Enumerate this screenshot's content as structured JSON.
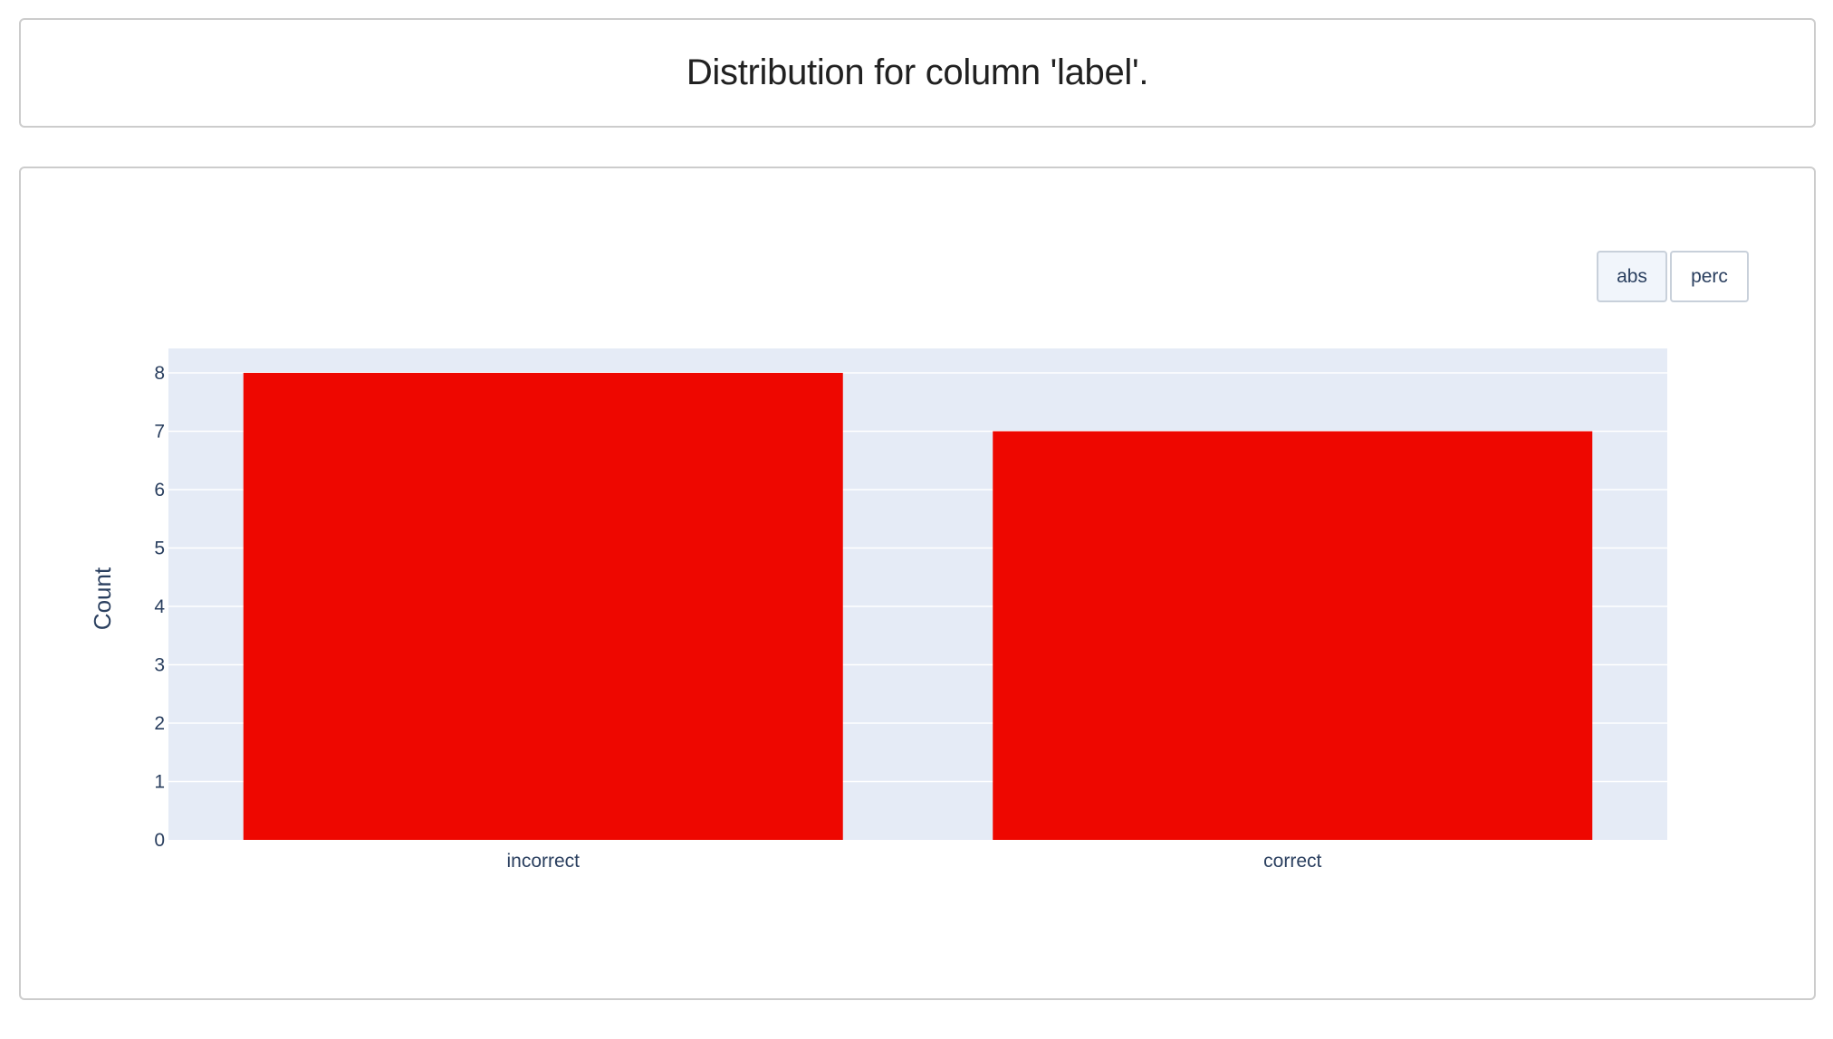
{
  "header": {
    "title": "Distribution for column 'label'."
  },
  "controls": {
    "buttons": [
      {
        "label": "abs",
        "active": true
      },
      {
        "label": "perc",
        "active": false
      }
    ]
  },
  "colors": {
    "bar": "#ee0700",
    "plot_background": "#e5ebf6",
    "grid": "#ffffff",
    "text": "#2a3f5f"
  },
  "chart_data": {
    "type": "bar",
    "categories": [
      "incorrect",
      "correct"
    ],
    "values": [
      8,
      7
    ],
    "title": "",
    "xlabel": "",
    "ylabel": "Count",
    "ylim": [
      0,
      8
    ],
    "yticks": [
      0,
      1,
      2,
      3,
      4,
      5,
      6,
      7,
      8
    ],
    "grid": true,
    "legend": "none"
  }
}
